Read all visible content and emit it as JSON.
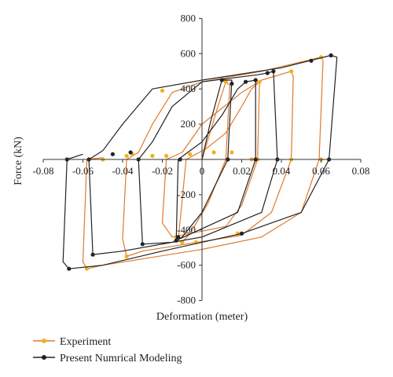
{
  "chart_data": {
    "type": "line",
    "xlabel": "Deformation (meter)",
    "ylabel": "Force (kN)",
    "xlim": [
      -0.08,
      0.08
    ],
    "ylim": [
      -800,
      800
    ],
    "x_ticks": [
      -0.08,
      -0.06,
      -0.04,
      -0.02,
      0,
      0.02,
      0.04,
      0.06,
      0.08
    ],
    "x_tick_labels": [
      "-0.08",
      "-0.06",
      "-0.04",
      "-0.02",
      "0",
      "0.02",
      "0.04",
      "0.06",
      "0.08"
    ],
    "y_ticks": [
      -800,
      -600,
      -400,
      -200,
      0,
      200,
      400,
      600,
      800
    ],
    "y_tick_labels": [
      "-800",
      "-600",
      "-400",
      "-200",
      "0",
      "200",
      "400",
      "600",
      "800"
    ],
    "legend_position": "bottom-left",
    "series": [
      {
        "name": "Experiment",
        "color": "#e07a2a",
        "marker_color": "#f0b020",
        "points": [
          [
            0,
            0
          ],
          [
            0.008,
            300
          ],
          [
            0.012,
            440
          ],
          [
            0.014,
            420
          ],
          [
            0.012,
            0
          ],
          [
            0.003,
            -250
          ],
          [
            -0.006,
            -420
          ],
          [
            -0.01,
            -470
          ],
          [
            -0.012,
            -460
          ],
          [
            -0.008,
            0
          ],
          [
            0.002,
            60
          ],
          [
            0.012,
            150
          ],
          [
            0.02,
            300
          ],
          [
            0.025,
            400
          ],
          [
            0.029,
            440
          ],
          [
            0.028,
            0
          ],
          [
            0.02,
            -260
          ],
          [
            0.012,
            -380
          ],
          [
            -0.015,
            -440
          ],
          [
            -0.02,
            -360
          ],
          [
            -0.018,
            0
          ],
          [
            -0.01,
            40
          ],
          [
            0.0,
            200
          ],
          [
            0.02,
            380
          ],
          [
            0.03,
            450
          ],
          [
            0.045,
            500
          ],
          [
            0.046,
            470
          ],
          [
            0.045,
            0
          ],
          [
            0.035,
            -300
          ],
          [
            0.02,
            -430
          ],
          [
            -0.03,
            -520
          ],
          [
            -0.038,
            -550
          ],
          [
            -0.04,
            -450
          ],
          [
            -0.038,
            0
          ],
          [
            -0.032,
            40
          ],
          [
            -0.025,
            200
          ],
          [
            -0.015,
            380
          ],
          [
            0.0,
            440
          ],
          [
            0.03,
            500
          ],
          [
            0.06,
            580
          ],
          [
            0.061,
            560
          ],
          [
            0.059,
            0
          ],
          [
            0.05,
            -300
          ],
          [
            0.03,
            -440
          ],
          [
            0.0,
            -510
          ],
          [
            -0.05,
            -600
          ],
          [
            -0.058,
            -620
          ],
          [
            -0.06,
            -580
          ],
          [
            -0.058,
            0
          ],
          [
            -0.05,
            10
          ]
        ],
        "markers": [
          [
            0.006,
            40
          ],
          [
            0.012,
            440
          ],
          [
            0.013,
            0
          ],
          [
            -0.003,
            -470
          ],
          [
            -0.01,
            -470
          ],
          [
            -0.006,
            30
          ],
          [
            0.015,
            40
          ],
          [
            0.029,
            440
          ],
          [
            0.028,
            0
          ],
          [
            -0.013,
            -440
          ],
          [
            -0.018,
            20
          ],
          [
            -0.035,
            30
          ],
          [
            0.045,
            500
          ],
          [
            0.045,
            0
          ],
          [
            -0.038,
            -550
          ],
          [
            -0.038,
            20
          ],
          [
            -0.05,
            0
          ],
          [
            -0.025,
            20
          ],
          [
            0.06,
            580
          ],
          [
            0.06,
            0
          ],
          [
            0.018,
            -420
          ],
          [
            -0.058,
            -620
          ],
          [
            -0.02,
            390
          ],
          [
            0.025,
            0
          ]
        ]
      },
      {
        "name": "Present Numrical Modeling",
        "color": "#222222",
        "marker_color": "#222222",
        "points": [
          [
            0,
            0
          ],
          [
            0.004,
            200
          ],
          [
            0.01,
            450
          ],
          [
            0.015,
            450
          ],
          [
            0.013,
            0
          ],
          [
            0.0,
            -300
          ],
          [
            -0.01,
            -440
          ],
          [
            -0.013,
            -460
          ],
          [
            -0.012,
            0
          ],
          [
            0.0,
            100
          ],
          [
            0.01,
            250
          ],
          [
            0.018,
            400
          ],
          [
            0.022,
            440
          ],
          [
            0.027,
            450
          ],
          [
            0.027,
            0
          ],
          [
            0.018,
            -300
          ],
          [
            -0.015,
            -470
          ],
          [
            -0.03,
            -480
          ],
          [
            -0.032,
            0
          ],
          [
            -0.025,
            100
          ],
          [
            -0.015,
            300
          ],
          [
            0.0,
            440
          ],
          [
            0.028,
            480
          ],
          [
            0.033,
            490
          ],
          [
            0.036,
            500
          ],
          [
            0.038,
            0
          ],
          [
            0.03,
            -300
          ],
          [
            0.0,
            -440
          ],
          [
            -0.04,
            -520
          ],
          [
            -0.055,
            -540
          ],
          [
            -0.057,
            0
          ],
          [
            -0.05,
            50
          ],
          [
            -0.04,
            200
          ],
          [
            -0.025,
            400
          ],
          [
            0.0,
            450
          ],
          [
            0.04,
            520
          ],
          [
            0.065,
            590
          ],
          [
            0.068,
            580
          ],
          [
            0.064,
            0
          ],
          [
            0.05,
            -300
          ],
          [
            0.02,
            -420
          ],
          [
            -0.02,
            -520
          ],
          [
            -0.05,
            -600
          ],
          [
            -0.067,
            -620
          ],
          [
            -0.07,
            -580
          ],
          [
            -0.068,
            0
          ],
          [
            -0.06,
            30
          ]
        ],
        "markers": [
          [
            0.01,
            450
          ],
          [
            0.015,
            430
          ],
          [
            0.013,
            0
          ],
          [
            -0.012,
            -440
          ],
          [
            -0.013,
            -460
          ],
          [
            -0.011,
            0
          ],
          [
            0.022,
            440
          ],
          [
            0.027,
            450
          ],
          [
            0.027,
            0
          ],
          [
            -0.03,
            -480
          ],
          [
            -0.032,
            0
          ],
          [
            -0.045,
            30
          ],
          [
            0.033,
            490
          ],
          [
            0.036,
            500
          ],
          [
            0.038,
            0
          ],
          [
            -0.055,
            -540
          ],
          [
            -0.057,
            0
          ],
          [
            -0.036,
            40
          ],
          [
            0.065,
            590
          ],
          [
            0.064,
            0
          ],
          [
            0.02,
            -420
          ],
          [
            -0.067,
            -620
          ],
          [
            -0.068,
            0
          ],
          [
            0.055,
            560
          ]
        ]
      }
    ]
  }
}
